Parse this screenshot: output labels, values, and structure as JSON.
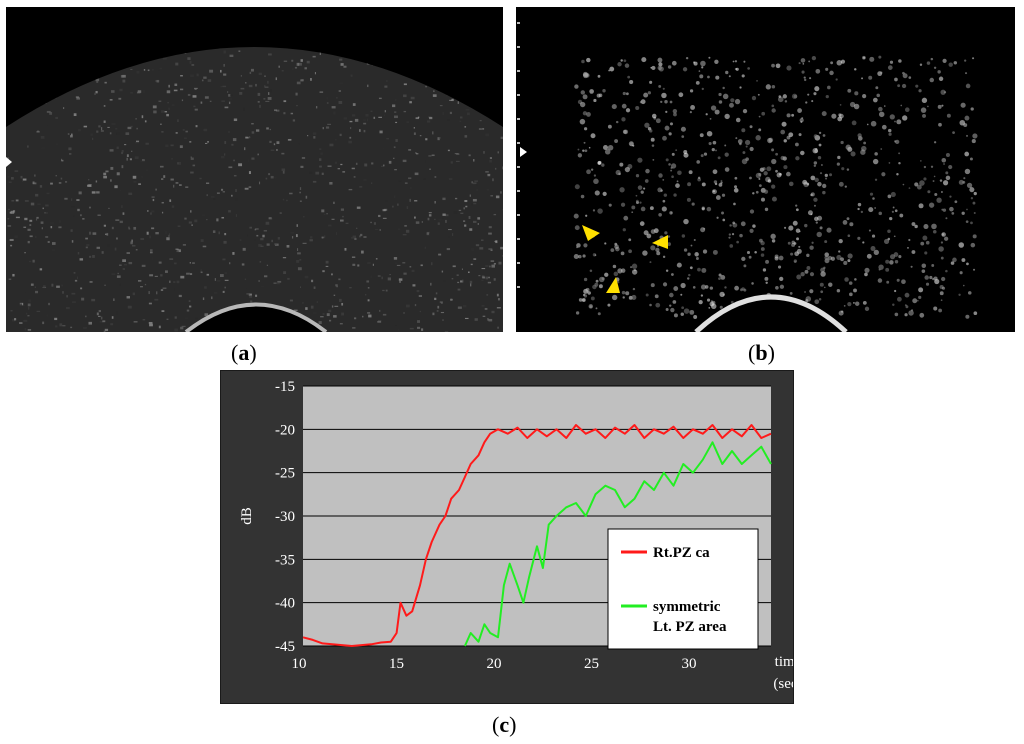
{
  "panels": {
    "a": {
      "label": "a"
    },
    "b": {
      "label": "b"
    },
    "c": {
      "label": "c"
    }
  },
  "colors": {
    "plot_bg": "#c0c0c0",
    "frame_bg": "#333333",
    "series_red": "#ff1a1a",
    "series_green": "#22ee22",
    "arrowhead": "#ffe000"
  },
  "chart_data": {
    "type": "line",
    "title": "",
    "xlabel": "time\n(sec)",
    "xlabel_lines": [
      "time",
      "(sec)"
    ],
    "ylabel": "dB",
    "xlim": [
      10,
      34
    ],
    "ylim": [
      -45,
      -15
    ],
    "xticks": [
      10,
      15,
      20,
      25,
      30
    ],
    "yticks": [
      -15,
      -20,
      -25,
      -30,
      -35,
      -40,
      -45
    ],
    "grid": true,
    "legend_position": "lower-right",
    "series": [
      {
        "name": "Rt.PZ ca",
        "color": "#ff1a1a",
        "x": [
          10,
          10.5,
          11,
          11.5,
          12,
          12.5,
          13,
          13.5,
          14,
          14.5,
          14.8,
          15,
          15.3,
          15.6,
          16,
          16.3,
          16.6,
          17,
          17.3,
          17.6,
          18,
          18.3,
          18.6,
          19,
          19.3,
          19.6,
          20,
          20.5,
          21,
          21.5,
          22,
          22.5,
          23,
          23.5,
          24,
          24.5,
          25,
          25.5,
          26,
          26.5,
          27,
          27.5,
          28,
          28.5,
          29,
          29.5,
          30,
          30.5,
          31,
          31.5,
          32,
          32.5,
          33,
          33.5,
          34
        ],
        "values": [
          -44,
          -44.3,
          -44.7,
          -44.8,
          -44.9,
          -45,
          -44.9,
          -44.8,
          -44.6,
          -44.5,
          -43.5,
          -40,
          -41.5,
          -41,
          -38,
          -35,
          -33,
          -31,
          -30,
          -28,
          -27,
          -25.5,
          -24,
          -23,
          -21.5,
          -20.5,
          -20,
          -20.5,
          -19.8,
          -21,
          -20,
          -20.8,
          -20,
          -21,
          -19.5,
          -20.5,
          -20,
          -21,
          -19.8,
          -20.5,
          -19.5,
          -21,
          -20,
          -20.5,
          -19.7,
          -21,
          -20,
          -20.5,
          -19.5,
          -21,
          -20,
          -20.8,
          -19.5,
          -21,
          -20.5
        ]
      },
      {
        "name": "symmetric\nLt. PZ area",
        "name_lines": [
          "symmetric",
          "Lt. PZ area"
        ],
        "color": "#22ee22",
        "x": [
          18.3,
          18.6,
          19,
          19.3,
          19.6,
          20,
          20.3,
          20.6,
          21,
          21.3,
          21.6,
          22,
          22.3,
          22.6,
          23,
          23.5,
          24,
          24.5,
          25,
          25.5,
          26,
          26.5,
          27,
          27.5,
          28,
          28.5,
          29,
          29.5,
          30,
          30.5,
          31,
          31.5,
          32,
          32.5,
          33,
          33.5,
          34
        ],
        "values": [
          -45,
          -43.5,
          -44.5,
          -42.5,
          -43.5,
          -44,
          -38,
          -35.5,
          -38,
          -40,
          -37,
          -33.5,
          -36,
          -31,
          -30,
          -29,
          -28.5,
          -30,
          -27.5,
          -26.5,
          -27,
          -29,
          -28,
          -26,
          -27,
          -25,
          -26.5,
          -24,
          -25,
          -23.5,
          -21.5,
          -24,
          -22.5,
          -24,
          -23,
          -22,
          -24
        ]
      }
    ]
  }
}
